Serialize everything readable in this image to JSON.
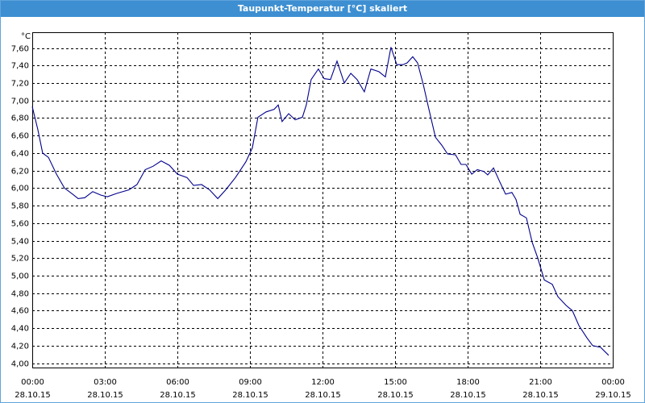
{
  "chart_data": {
    "type": "line",
    "title": "Taupunkt-Temperatur [°C] skaliert",
    "y_unit": "°C",
    "color": "#00008b",
    "grid": true,
    "xlim": [
      0,
      24
    ],
    "xticks": [
      {
        "value": 0,
        "label": "00:00"
      },
      {
        "value": 3,
        "label": "03:00"
      },
      {
        "value": 6,
        "label": "06:00"
      },
      {
        "value": 9,
        "label": "09:00"
      },
      {
        "value": 12,
        "label": "12:00"
      },
      {
        "value": 15,
        "label": "15:00"
      },
      {
        "value": 18,
        "label": "18:00"
      },
      {
        "value": 21,
        "label": "21:00"
      },
      {
        "value": 24,
        "label": "00:00"
      }
    ],
    "xtick_dates": [
      "28.10.15",
      "28.10.15",
      "28.10.15",
      "28.10.15",
      "28.10.15",
      "28.10.15",
      "28.10.15",
      "28.10.15",
      "29.10.15"
    ],
    "ylim": [
      3.95,
      7.78
    ],
    "yticks": [
      {
        "value": 4.0,
        "label": "4,00"
      },
      {
        "value": 4.2,
        "label": "4,20"
      },
      {
        "value": 4.4,
        "label": "4,40"
      },
      {
        "value": 4.6,
        "label": "4,60"
      },
      {
        "value": 4.8,
        "label": "4,80"
      },
      {
        "value": 5.0,
        "label": "5,00"
      },
      {
        "value": 5.2,
        "label": "5,20"
      },
      {
        "value": 5.4,
        "label": "5,40"
      },
      {
        "value": 5.6,
        "label": "5,60"
      },
      {
        "value": 5.8,
        "label": "5,80"
      },
      {
        "value": 6.0,
        "label": "6,00"
      },
      {
        "value": 6.2,
        "label": "6,20"
      },
      {
        "value": 6.4,
        "label": "6,40"
      },
      {
        "value": 6.6,
        "label": "6,60"
      },
      {
        "value": 6.8,
        "label": "6,80"
      },
      {
        "value": 7.0,
        "label": "7,00"
      },
      {
        "value": 7.2,
        "label": "7,20"
      },
      {
        "value": 7.4,
        "label": "7,40"
      },
      {
        "value": 7.6,
        "label": "7,60"
      }
    ],
    "x": [
      0,
      0.23,
      0.43,
      0.67,
      1.0,
      1.33,
      1.67,
      1.9,
      2.17,
      2.5,
      2.83,
      3.1,
      3.5,
      4.0,
      4.33,
      4.67,
      5.0,
      5.33,
      5.67,
      6.0,
      6.4,
      6.67,
      7.0,
      7.33,
      7.67,
      8.0,
      8.4,
      8.83,
      9.1,
      9.33,
      9.67,
      10.0,
      10.17,
      10.33,
      10.6,
      10.87,
      11.17,
      11.33,
      11.53,
      11.83,
      12.07,
      12.33,
      12.6,
      12.9,
      13.17,
      13.43,
      13.73,
      14.0,
      14.33,
      14.6,
      14.83,
      15.07,
      15.33,
      15.5,
      15.73,
      15.93,
      16.17,
      16.4,
      16.67,
      16.93,
      17.17,
      17.5,
      17.73,
      17.93,
      18.17,
      18.4,
      18.67,
      18.83,
      19.07,
      19.33,
      19.57,
      19.83,
      20.0,
      20.17,
      20.43,
      20.67,
      20.9,
      21.17,
      21.5,
      21.73,
      22.07,
      22.33,
      22.6,
      22.93,
      23.17,
      23.5,
      23.83
    ],
    "values": [
      6.93,
      6.67,
      6.4,
      6.35,
      6.16,
      6.0,
      5.93,
      5.88,
      5.89,
      5.96,
      5.92,
      5.9,
      5.94,
      5.98,
      6.04,
      6.21,
      6.25,
      6.31,
      6.26,
      6.16,
      6.12,
      6.03,
      6.04,
      5.98,
      5.88,
      5.98,
      6.12,
      6.3,
      6.46,
      6.81,
      6.87,
      6.9,
      6.95,
      6.76,
      6.85,
      6.78,
      6.81,
      6.95,
      7.24,
      7.36,
      7.25,
      7.24,
      7.45,
      7.2,
      7.31,
      7.24,
      7.1,
      7.36,
      7.33,
      7.27,
      7.61,
      7.41,
      7.41,
      7.43,
      7.5,
      7.43,
      7.18,
      6.9,
      6.58,
      6.49,
      6.39,
      6.38,
      6.27,
      6.27,
      6.16,
      6.21,
      6.19,
      6.15,
      6.23,
      6.07,
      5.93,
      5.95,
      5.87,
      5.7,
      5.66,
      5.38,
      5.2,
      4.95,
      4.9,
      4.76,
      4.66,
      4.6,
      4.43,
      4.29,
      4.2,
      4.18,
      4.09
    ]
  }
}
